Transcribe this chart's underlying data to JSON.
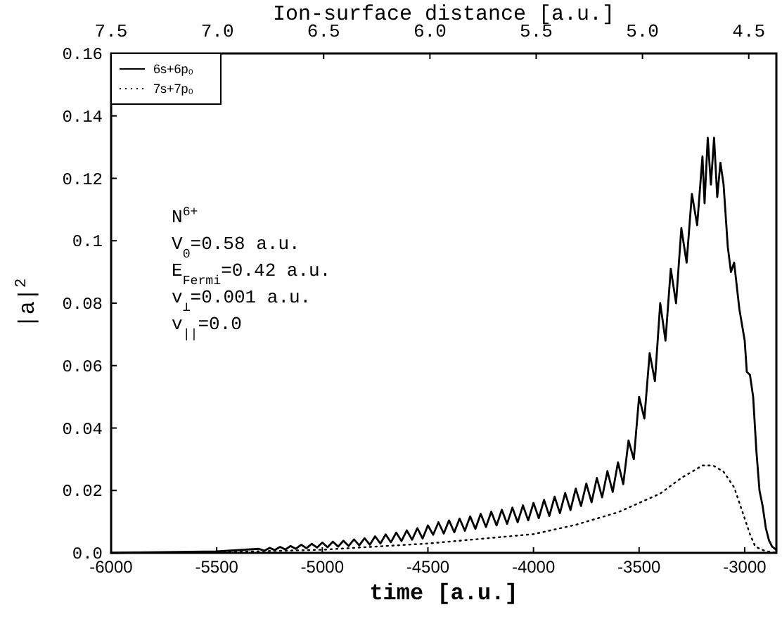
{
  "chart_data": {
    "type": "line",
    "xlabel": "time [a.u.]",
    "ylabel": "|a|$^{2}$",
    "x2label": "Ion-surface distance [a.u.]",
    "xlim": [
      -6000,
      -2850
    ],
    "xticks": [
      -6000,
      -5500,
      -5000,
      -4500,
      -4000,
      -3500,
      -3000
    ],
    "x2lim": [
      7.5,
      4.37
    ],
    "x2ticks": [
      {
        "value": 7.5,
        "label": "7.5"
      },
      {
        "value": 7,
        "label": "7.0"
      },
      {
        "value": 6.5,
        "label": "6.5"
      },
      {
        "value": 6,
        "label": "6.0"
      },
      {
        "value": 5.5,
        "label": "5.5"
      },
      {
        "value": 5,
        "label": "5.0"
      },
      {
        "value": 4.5,
        "label": "4.5"
      }
    ],
    "ylim": [
      0,
      0.16
    ],
    "yticks": [
      {
        "value": 0,
        "label": "0.0"
      },
      0.02,
      0.04,
      0.06,
      0.08,
      0.1,
      0.12,
      0.14,
      0.16
    ],
    "grid": false,
    "legend": "top left",
    "annotations": [
      "N$^{6+}$",
      "V$_{0}$=0.58 a.u.",
      "E$_{Fermi}$=0.42 a.u.",
      "v$_{⊥}$=0.001 a.u.",
      "v$_{||}$=0.0"
    ],
    "series": [
      {
        "name": "6s+6p₀",
        "color": "#000000",
        "line_style": "solid",
        "x": [
          -6000,
          -5800,
          -5500,
          -5300,
          -5275,
          -5250,
          -5225,
          -5200,
          -5175,
          -5150,
          -5125,
          -5100,
          -5075,
          -5050,
          -5025,
          -5000,
          -4975,
          -4950,
          -4925,
          -4900,
          -4875,
          -4850,
          -4825,
          -4800,
          -4775,
          -4750,
          -4725,
          -4700,
          -4675,
          -4650,
          -4625,
          -4600,
          -4575,
          -4550,
          -4525,
          -4500,
          -4475,
          -4450,
          -4425,
          -4400,
          -4375,
          -4350,
          -4325,
          -4300,
          -4275,
          -4250,
          -4225,
          -4200,
          -4175,
          -4150,
          -4125,
          -4100,
          -4075,
          -4050,
          -4025,
          -4000,
          -3975,
          -3950,
          -3925,
          -3900,
          -3875,
          -3850,
          -3825,
          -3800,
          -3775,
          -3750,
          -3725,
          -3700,
          -3675,
          -3650,
          -3625,
          -3600,
          -3575,
          -3550,
          -3525,
          -3500,
          -3475,
          -3450,
          -3425,
          -3400,
          -3375,
          -3350,
          -3325,
          -3300,
          -3275,
          -3250,
          -3225,
          -3200,
          -3190,
          -3175,
          -3160,
          -3145,
          -3130,
          -3115,
          -3100,
          -3080,
          -3065,
          -3050,
          -3025,
          -3000,
          -2990,
          -2975,
          -2960,
          -2945,
          -2930,
          -2915,
          -2900,
          -2885,
          -2870,
          -2850
        ],
        "values": [
          0,
          0.0002,
          0.0005,
          0.0013,
          0.0007,
          0.0016,
          0.0009,
          0.0019,
          0.0011,
          0.0022,
          0.0013,
          0.0026,
          0.0015,
          0.0029,
          0.0017,
          0.0033,
          0.0018,
          0.0036,
          0.002,
          0.0039,
          0.0022,
          0.0043,
          0.0024,
          0.0047,
          0.0026,
          0.0053,
          0.003,
          0.0059,
          0.0034,
          0.0065,
          0.0038,
          0.0072,
          0.0042,
          0.0079,
          0.0046,
          0.0088,
          0.0058,
          0.0098,
          0.0062,
          0.0104,
          0.0066,
          0.011,
          0.0071,
          0.0117,
          0.0077,
          0.0125,
          0.0083,
          0.0132,
          0.0088,
          0.0138,
          0.0093,
          0.0145,
          0.0098,
          0.0152,
          0.0104,
          0.016,
          0.0111,
          0.017,
          0.0118,
          0.018,
          0.0127,
          0.0192,
          0.0137,
          0.0206,
          0.015,
          0.0222,
          0.0162,
          0.024,
          0.0178,
          0.0262,
          0.0195,
          0.029,
          0.022,
          0.036,
          0.03,
          0.05,
          0.043,
          0.064,
          0.055,
          0.08,
          0.068,
          0.091,
          0.08,
          0.104,
          0.093,
          0.115,
          0.105,
          0.127,
          0.112,
          0.133,
          0.118,
          0.133,
          0.114,
          0.125,
          0.118,
          0.098,
          0.09,
          0.093,
          0.078,
          0.068,
          0.058,
          0.057,
          0.05,
          0.033,
          0.02,
          0.015,
          0.008,
          0.004,
          0.002,
          0.001
        ]
      },
      {
        "name": "7s+7p₀",
        "color": "#000000",
        "line_style": "dotted",
        "x": [
          -6000,
          -5500,
          -5000,
          -4750,
          -4500,
          -4250,
          -4000,
          -3800,
          -3600,
          -3500,
          -3400,
          -3300,
          -3200,
          -3150,
          -3100,
          -3050,
          -3000,
          -2975,
          -2950,
          -2900,
          -2850
        ],
        "values": [
          0,
          0.0002,
          0.001,
          0.002,
          0.003,
          0.0045,
          0.006,
          0.009,
          0.013,
          0.016,
          0.019,
          0.024,
          0.028,
          0.028,
          0.026,
          0.021,
          0.011,
          0.006,
          0.002,
          0.0005,
          0
        ]
      }
    ]
  }
}
